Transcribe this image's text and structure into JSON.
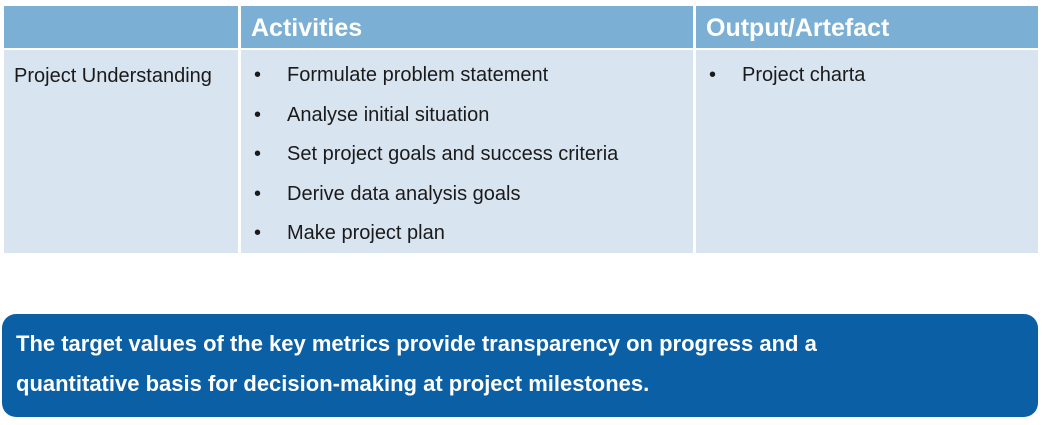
{
  "table": {
    "headers": [
      "",
      "Activities",
      "Output/Artefact"
    ],
    "rows": [
      {
        "phase": "Project Understanding",
        "activities": [
          "Formulate problem statement",
          "Analyse initial situation",
          "Set project goals and success criteria",
          "Derive data analysis goals",
          "Make project plan"
        ],
        "outputs": [
          "Project charta"
        ]
      }
    ],
    "bullet": "•"
  },
  "banner": {
    "line1": "The target values of the key metrics provide transparency on progress and a",
    "line2": "quantitative basis for decision-making at project milestones."
  },
  "colors": {
    "header_bg": "#7bafd4",
    "row_bg": "#d9e4f1",
    "banner_bg": "#0b5fa5"
  }
}
